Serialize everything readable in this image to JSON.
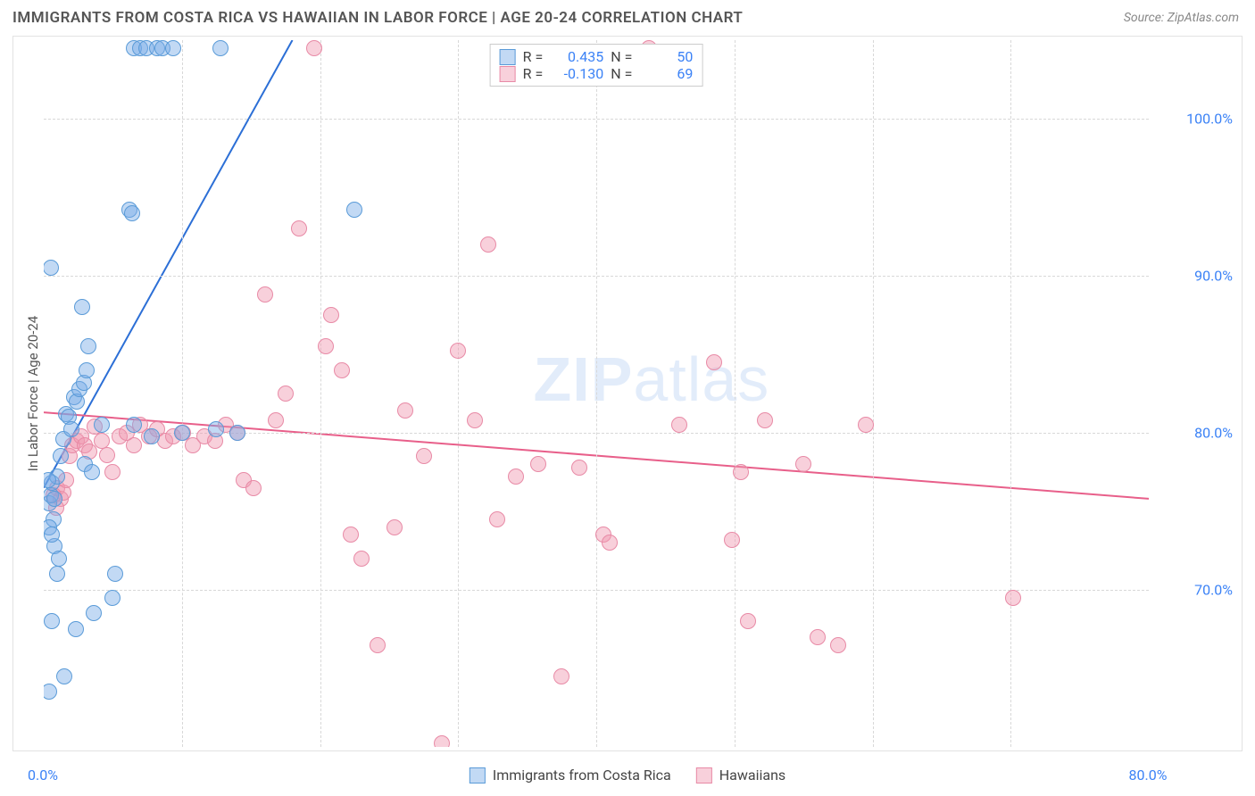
{
  "title": "IMMIGRANTS FROM COSTA RICA VS HAWAIIAN IN LABOR FORCE | AGE 20-24 CORRELATION CHART",
  "source": "Source: ZipAtlas.com",
  "watermark_a": "ZIP",
  "watermark_b": "atlas",
  "chart": {
    "type": "scatter",
    "background_color": "#ffffff",
    "grid_color": "#d8d8d8",
    "border_color": "#e2e2e2",
    "axis_label_color": "#3b82f6",
    "yaxis_title": "In Labor Force | Age 20-24",
    "xlim": [
      0,
      80
    ],
    "ylim": [
      60,
      105
    ],
    "yticks": [
      70,
      80,
      90,
      100
    ],
    "ytick_labels": [
      "70.0%",
      "80.0%",
      "90.0%",
      "100.0%"
    ],
    "xticks": [
      0,
      80
    ],
    "xtick_labels": [
      "0.0%",
      "80.0%"
    ],
    "x_gridlines_at": [
      10,
      20,
      30,
      40,
      50,
      60,
      70
    ],
    "marker_radius": 9,
    "marker_opacity": 0.55,
    "line_width": 2,
    "title_fontsize": 17,
    "tick_fontsize": 16
  },
  "series": {
    "a": {
      "label": "Immigrants from Costa Rica",
      "fill": "rgba(120,170,230,0.45)",
      "stroke": "#5a9bd8",
      "line_color": "#2c6fd6",
      "R": "0.435",
      "N": "50",
      "regression": {
        "x1": 0,
        "y1": 76.5,
        "x2": 18,
        "y2": 105
      },
      "points": [
        [
          0.4,
          75.5
        ],
        [
          0.5,
          76
        ],
        [
          0.6,
          76.8
        ],
        [
          0.7,
          74.5
        ],
        [
          0.8,
          75.8
        ],
        [
          1.0,
          77.2
        ],
        [
          1.2,
          78.5
        ],
        [
          1.4,
          79.6
        ],
        [
          1.6,
          81.2
        ],
        [
          1.8,
          81.0
        ],
        [
          2.0,
          80.2
        ],
        [
          2.2,
          82.3
        ],
        [
          2.4,
          82.0
        ],
        [
          2.6,
          82.8
        ],
        [
          2.9,
          83.2
        ],
        [
          3.1,
          84.0
        ],
        [
          0.4,
          74.0
        ],
        [
          0.8,
          72.8
        ],
        [
          1.1,
          72.0
        ],
        [
          1.0,
          71.0
        ],
        [
          0.6,
          73.5
        ],
        [
          0.5,
          90.5
        ],
        [
          2.8,
          88.0
        ],
        [
          3.2,
          85.5
        ],
        [
          0.6,
          68.0
        ],
        [
          2.3,
          67.5
        ],
        [
          3.6,
          68.5
        ],
        [
          5.0,
          69.5
        ],
        [
          5.2,
          71.0
        ],
        [
          1.5,
          64.5
        ],
        [
          0.4,
          63.5
        ],
        [
          6.5,
          104.5
        ],
        [
          7.0,
          104.5
        ],
        [
          7.4,
          104.5
        ],
        [
          8.2,
          104.5
        ],
        [
          8.6,
          104.5
        ],
        [
          9.4,
          104.5
        ],
        [
          12.8,
          104.5
        ],
        [
          6.2,
          94.2
        ],
        [
          6.4,
          94.0
        ],
        [
          6.5,
          80.5
        ],
        [
          4.2,
          80.5
        ],
        [
          7.8,
          79.8
        ],
        [
          10.0,
          80.0
        ],
        [
          12.5,
          80.2
        ],
        [
          14.0,
          80.0
        ],
        [
          3.0,
          78.0
        ],
        [
          3.5,
          77.5
        ],
        [
          22.5,
          94.2
        ],
        [
          0.3,
          77.0
        ]
      ]
    },
    "b": {
      "label": "Hawaiians",
      "fill": "rgba(240,150,175,0.45)",
      "stroke": "#e88aa6",
      "line_color": "#e85f8a",
      "R": "-0.130",
      "N": "69",
      "regression": {
        "x1": 0,
        "y1": 81.3,
        "x2": 80,
        "y2": 75.8
      },
      "points": [
        [
          1.0,
          76.5
        ],
        [
          1.2,
          75.8
        ],
        [
          1.4,
          76.2
        ],
        [
          1.6,
          77.0
        ],
        [
          1.9,
          78.5
        ],
        [
          2.1,
          79.2
        ],
        [
          2.4,
          79.5
        ],
        [
          2.7,
          79.8
        ],
        [
          3.0,
          79.2
        ],
        [
          3.3,
          78.8
        ],
        [
          3.7,
          80.4
        ],
        [
          4.2,
          79.5
        ],
        [
          4.6,
          78.6
        ],
        [
          5.0,
          77.5
        ],
        [
          5.5,
          79.8
        ],
        [
          6.0,
          80.0
        ],
        [
          6.5,
          79.2
        ],
        [
          7.0,
          80.5
        ],
        [
          7.6,
          79.8
        ],
        [
          8.2,
          80.2
        ],
        [
          8.8,
          79.5
        ],
        [
          9.4,
          79.8
        ],
        [
          10.1,
          80.0
        ],
        [
          10.8,
          79.2
        ],
        [
          11.6,
          79.8
        ],
        [
          12.4,
          79.5
        ],
        [
          13.2,
          80.5
        ],
        [
          14.0,
          80.0
        ],
        [
          14.5,
          77.0
        ],
        [
          15.2,
          76.5
        ],
        [
          16.0,
          88.8
        ],
        [
          16.8,
          80.8
        ],
        [
          17.5,
          82.5
        ],
        [
          18.5,
          93.0
        ],
        [
          19.6,
          104.5
        ],
        [
          20.4,
          85.5
        ],
        [
          20.8,
          87.5
        ],
        [
          21.6,
          84.0
        ],
        [
          22.2,
          73.5
        ],
        [
          23.0,
          72.0
        ],
        [
          24.2,
          66.5
        ],
        [
          25.4,
          74.0
        ],
        [
          26.2,
          81.4
        ],
        [
          27.5,
          78.5
        ],
        [
          28.8,
          60.2
        ],
        [
          30.0,
          85.2
        ],
        [
          31.2,
          80.8
        ],
        [
          32.2,
          92.0
        ],
        [
          32.8,
          74.5
        ],
        [
          34.2,
          77.2
        ],
        [
          35.8,
          78.0
        ],
        [
          37.5,
          64.5
        ],
        [
          38.8,
          77.8
        ],
        [
          40.5,
          73.5
        ],
        [
          41.0,
          73.0
        ],
        [
          43.8,
          104.5
        ],
        [
          46.0,
          80.5
        ],
        [
          48.5,
          84.5
        ],
        [
          49.8,
          73.2
        ],
        [
          50.5,
          77.5
        ],
        [
          51.0,
          68.0
        ],
        [
          52.2,
          80.8
        ],
        [
          55.0,
          78.0
        ],
        [
          56.0,
          67.0
        ],
        [
          57.5,
          66.5
        ],
        [
          59.5,
          80.5
        ],
        [
          70.2,
          69.5
        ],
        [
          0.9,
          75.2
        ],
        [
          0.7,
          76.0
        ]
      ]
    }
  },
  "legend_bottom": [
    {
      "key": "a"
    },
    {
      "key": "b"
    }
  ]
}
